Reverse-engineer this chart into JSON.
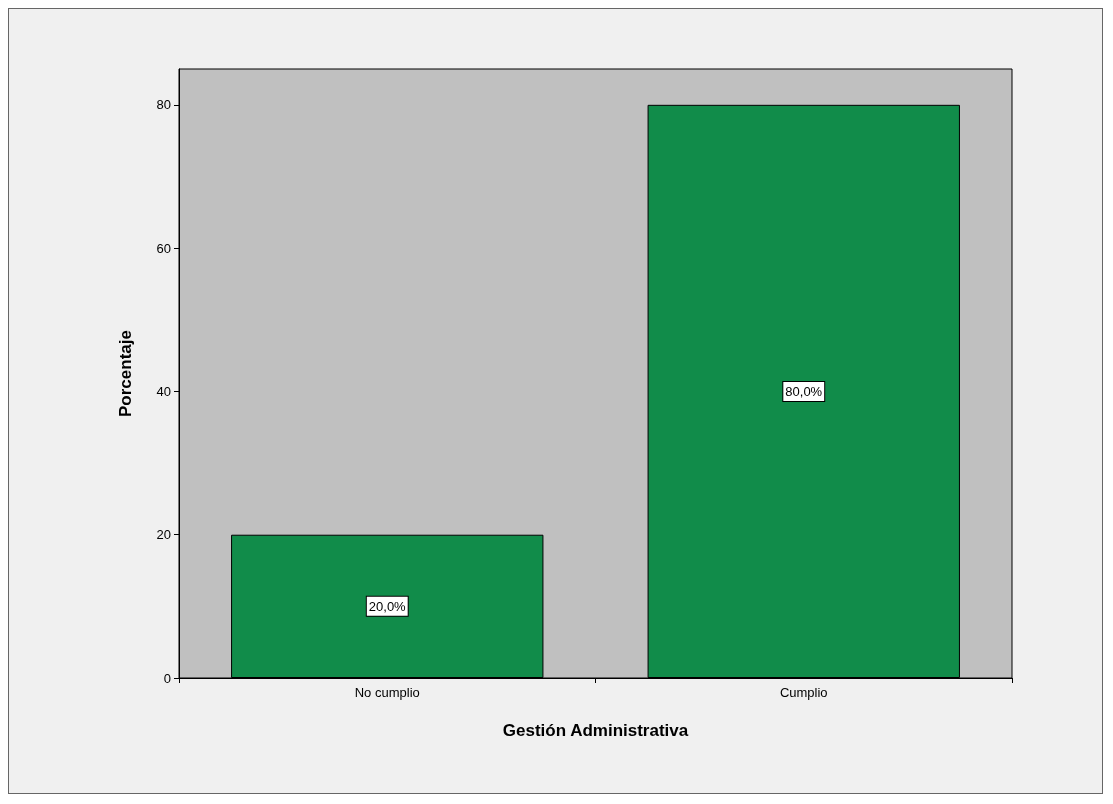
{
  "chart_data": {
    "type": "bar",
    "xlabel": "Gestión Administrativa",
    "ylabel": "Porcentaje",
    "categories": [
      "No cumplio",
      "Cumplio"
    ],
    "values": [
      20,
      80
    ],
    "value_labels": [
      "20,0%",
      "80,0%"
    ],
    "color": "#118c4a",
    "ylim": [
      0,
      85
    ],
    "yticks": [
      0,
      20,
      40,
      60,
      80
    ],
    "grid": false
  }
}
